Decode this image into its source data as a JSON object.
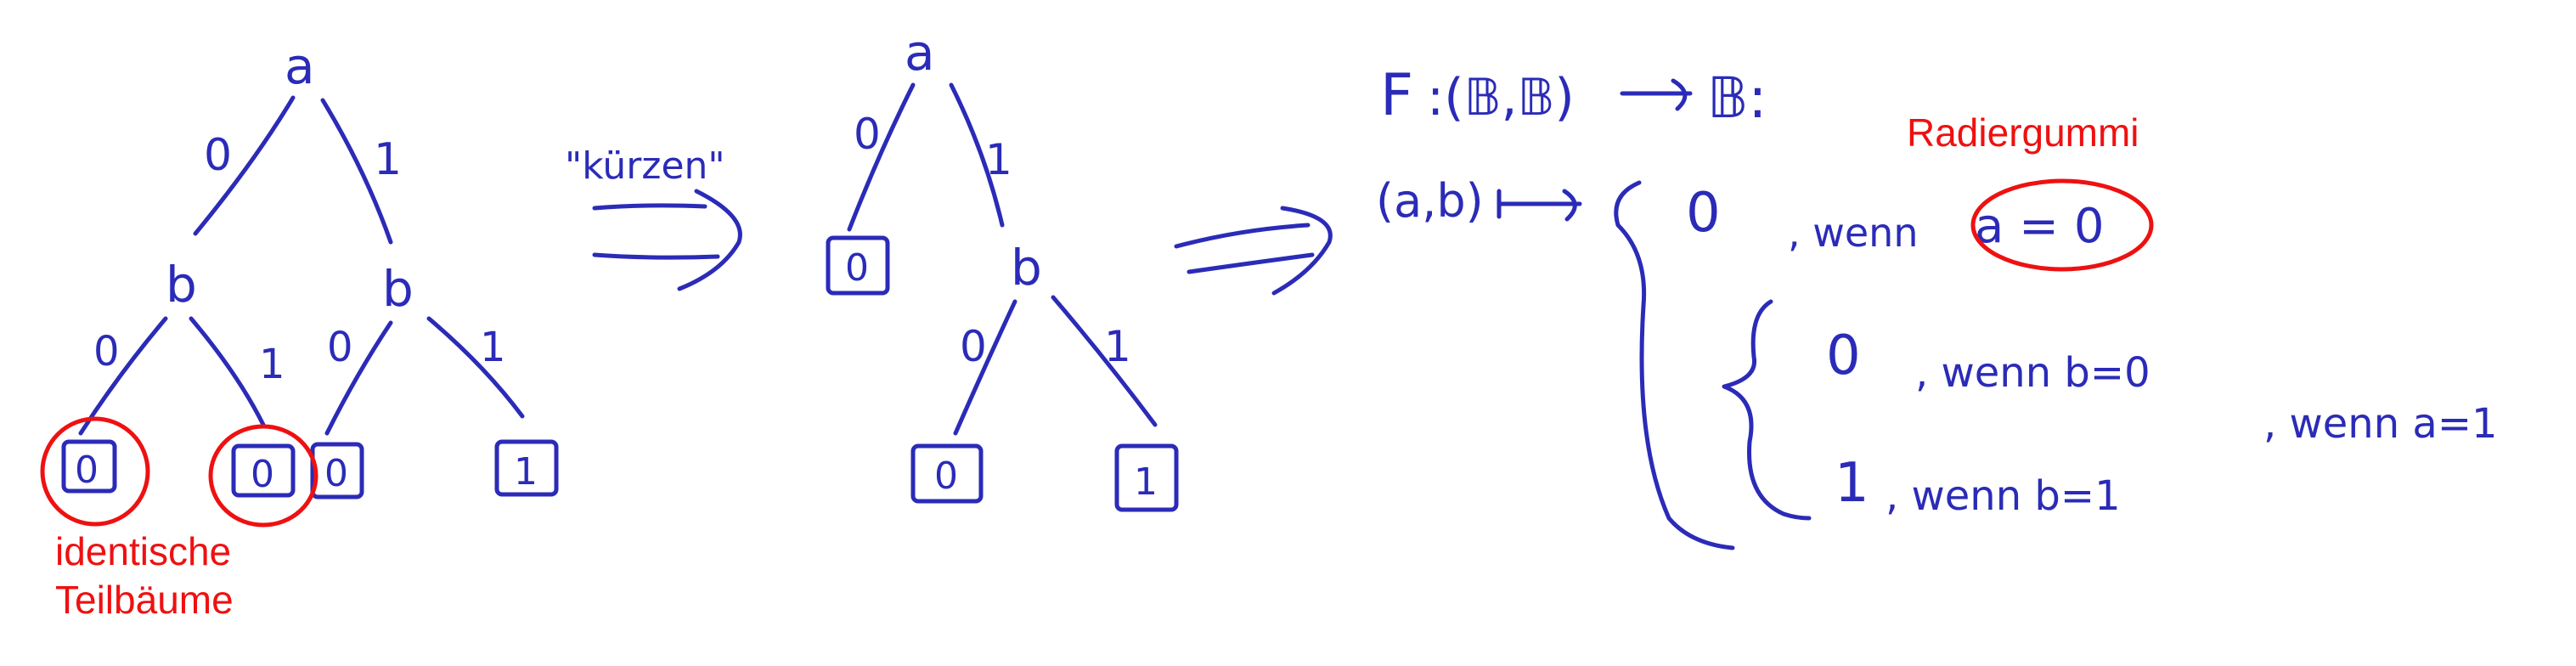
{
  "tree_full": {
    "root": "a",
    "left_child": "b",
    "right_child": "b",
    "edge_labels": [
      "0",
      "1",
      "0",
      "1",
      "0",
      "1"
    ],
    "leaves": [
      "0",
      "0",
      "0",
      "1"
    ]
  },
  "shorten_label": "\"kürzen\"",
  "tree_reduced": {
    "root": "a",
    "child": "b",
    "edge_labels": [
      "0",
      "1",
      "0",
      "1"
    ],
    "leaves": [
      "0",
      "0",
      "1"
    ]
  },
  "formula": {
    "signature_f": "F",
    "signature_rest": ":(𝔹,𝔹)",
    "signature_codomain": "𝔹:",
    "mapping_lhs": "(a,b)",
    "case_top_value": "0",
    "case_top_cond": ", wenn",
    "case_top_rhs": "a = 0",
    "inner_case1_value": "0",
    "inner_case1_cond": ", wenn b=0",
    "inner_case2_value": "1",
    "inner_case2_cond": ", wenn b=1",
    "outer_case2_cond": ", wenn a=1"
  },
  "annotations": {
    "eraser": "Radiergummi",
    "identical_subtrees_line1": "identische",
    "identical_subtrees_line2": "Teilbäume"
  },
  "colors": {
    "ink": "#2b2bb8",
    "annotation": "#ee1111",
    "background": "#ffffff"
  }
}
